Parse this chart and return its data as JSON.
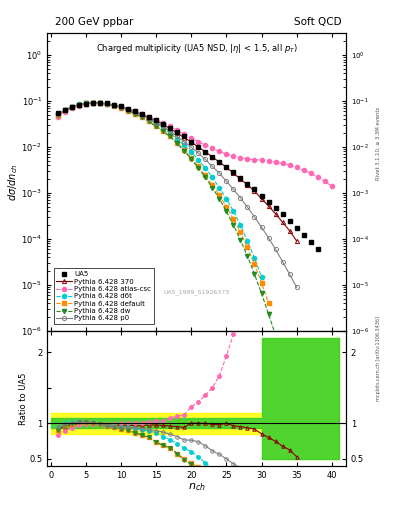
{
  "title_top": "200 GeV ppbar",
  "title_right": "Soft QCD",
  "plot_title": "Charged multiplicity (UA5 NSD, |\\u03b7| < 1.5, all p_T)",
  "ylabel_main": "d\\u03c3/dn_ch",
  "ylabel_ratio": "Ratio to UA5",
  "xlabel": "n_ch",
  "watermark": "UA5_1989_S1926373",
  "ua5_x": [
    1,
    2,
    3,
    4,
    5,
    6,
    7,
    8,
    9,
    10,
    11,
    12,
    13,
    14,
    15,
    16,
    17,
    18,
    19,
    20,
    21,
    22,
    23,
    24,
    25,
    26,
    27,
    28,
    29,
    30,
    31,
    32,
    33,
    34,
    35,
    36,
    37,
    38
  ],
  "ua5_y": [
    0.055,
    0.065,
    0.075,
    0.082,
    0.088,
    0.091,
    0.091,
    0.089,
    0.084,
    0.077,
    0.069,
    0.061,
    0.053,
    0.045,
    0.038,
    0.032,
    0.026,
    0.021,
    0.017,
    0.013,
    0.01,
    0.0079,
    0.0062,
    0.0048,
    0.0036,
    0.0028,
    0.0021,
    0.0016,
    0.0012,
    0.00088,
    0.00065,
    0.00047,
    0.00034,
    0.00024,
    0.00017,
    0.00012,
    8.5e-05,
    6e-05
  ],
  "py370_x": [
    1,
    2,
    3,
    4,
    5,
    6,
    7,
    8,
    9,
    10,
    11,
    12,
    13,
    14,
    15,
    16,
    17,
    18,
    19,
    20,
    21,
    22,
    23,
    24,
    25,
    26,
    27,
    28,
    29,
    30,
    31,
    32,
    33,
    34,
    35
  ],
  "py370_y": [
    0.05,
    0.062,
    0.073,
    0.082,
    0.088,
    0.091,
    0.09,
    0.087,
    0.082,
    0.075,
    0.067,
    0.059,
    0.051,
    0.044,
    0.037,
    0.031,
    0.025,
    0.02,
    0.016,
    0.013,
    0.01,
    0.0079,
    0.0061,
    0.0047,
    0.0036,
    0.0027,
    0.002,
    0.0015,
    0.0011,
    0.00075,
    0.00052,
    0.00035,
    0.00023,
    0.00015,
    9e-05
  ],
  "pyatlas_x": [
    1,
    2,
    3,
    4,
    5,
    6,
    7,
    8,
    9,
    10,
    11,
    12,
    13,
    14,
    15,
    16,
    17,
    18,
    19,
    20,
    21,
    22,
    23,
    24,
    25,
    26,
    27,
    28,
    29,
    30,
    31,
    32,
    33,
    34,
    35,
    36,
    37,
    38,
    39,
    40
  ],
  "pyatlas_y": [
    0.046,
    0.058,
    0.07,
    0.08,
    0.087,
    0.09,
    0.09,
    0.088,
    0.083,
    0.077,
    0.069,
    0.061,
    0.053,
    0.046,
    0.039,
    0.033,
    0.028,
    0.023,
    0.019,
    0.016,
    0.013,
    0.011,
    0.0093,
    0.008,
    0.007,
    0.0063,
    0.0058,
    0.0055,
    0.0053,
    0.0052,
    0.005,
    0.0047,
    0.0044,
    0.004,
    0.0036,
    0.0031,
    0.0027,
    0.0022,
    0.0018,
    0.0014
  ],
  "pyd6t_x": [
    1,
    2,
    3,
    4,
    5,
    6,
    7,
    8,
    9,
    10,
    11,
    12,
    13,
    14,
    15,
    16,
    17,
    18,
    19,
    20,
    21,
    22,
    23,
    24,
    25,
    26,
    27,
    28,
    29,
    30
  ],
  "pyd6t_y": [
    0.052,
    0.065,
    0.076,
    0.085,
    0.09,
    0.092,
    0.091,
    0.087,
    0.081,
    0.073,
    0.065,
    0.056,
    0.048,
    0.04,
    0.033,
    0.026,
    0.02,
    0.015,
    0.011,
    0.0078,
    0.0053,
    0.0035,
    0.0022,
    0.0013,
    0.00075,
    0.0004,
    0.0002,
    9e-05,
    3.8e-05,
    1.5e-05
  ],
  "pydefault_x": [
    1,
    2,
    3,
    4,
    5,
    6,
    7,
    8,
    9,
    10,
    11,
    12,
    13,
    14,
    15,
    16,
    17,
    18,
    19,
    20,
    21,
    22,
    23,
    24,
    25,
    26,
    27,
    28,
    29,
    30,
    31
  ],
  "pydefault_y": [
    0.05,
    0.063,
    0.074,
    0.083,
    0.089,
    0.091,
    0.09,
    0.086,
    0.079,
    0.071,
    0.062,
    0.053,
    0.044,
    0.036,
    0.028,
    0.022,
    0.017,
    0.012,
    0.0085,
    0.0058,
    0.0038,
    0.0024,
    0.0015,
    0.0009,
    0.0005,
    0.00027,
    0.00014,
    6.5e-05,
    2.8e-05,
    1.1e-05,
    4e-06
  ],
  "pydw_x": [
    1,
    2,
    3,
    4,
    5,
    6,
    7,
    8,
    9,
    10,
    11,
    12,
    13,
    14,
    15,
    16,
    17,
    18,
    19,
    20,
    21,
    22,
    23,
    24,
    25,
    26,
    27,
    28,
    29,
    30,
    31,
    32
  ],
  "pydw_y": [
    0.05,
    0.063,
    0.074,
    0.083,
    0.089,
    0.091,
    0.09,
    0.086,
    0.079,
    0.071,
    0.062,
    0.053,
    0.044,
    0.036,
    0.028,
    0.022,
    0.017,
    0.012,
    0.0082,
    0.0055,
    0.0035,
    0.0022,
    0.0013,
    0.00075,
    0.0004,
    0.0002,
    9.5e-05,
    4.2e-05,
    1.7e-05,
    6.5e-06,
    2.3e-06,
    8e-07
  ],
  "pyp0_x": [
    1,
    2,
    3,
    4,
    5,
    6,
    7,
    8,
    9,
    10,
    11,
    12,
    13,
    14,
    15,
    16,
    17,
    18,
    19,
    20,
    21,
    22,
    23,
    24,
    25,
    26,
    27,
    28,
    29,
    30,
    31,
    32,
    33,
    34,
    35
  ],
  "pyp0_y": [
    0.052,
    0.064,
    0.075,
    0.083,
    0.089,
    0.091,
    0.09,
    0.086,
    0.08,
    0.073,
    0.065,
    0.057,
    0.049,
    0.041,
    0.034,
    0.028,
    0.022,
    0.017,
    0.013,
    0.0099,
    0.0074,
    0.0054,
    0.0038,
    0.0027,
    0.0018,
    0.0012,
    0.00078,
    0.00049,
    0.0003,
    0.00018,
    0.000105,
    5.9e-05,
    3.2e-05,
    1.7e-05,
    8.8e-06
  ],
  "colors": {
    "ua5": "#000000",
    "py370": "#8b0000",
    "pyatlas": "#ff69b4",
    "pyd6t": "#00ced1",
    "pydefault": "#ff8c00",
    "pydw": "#228b22",
    "pyp0": "#808080"
  },
  "band_x": [
    0,
    1,
    2,
    3,
    4,
    5,
    6,
    7,
    8,
    9,
    10,
    11,
    12,
    13,
    14,
    15,
    16,
    17,
    18,
    19,
    20,
    21,
    22,
    23,
    24,
    25,
    26,
    27,
    28,
    29,
    30,
    31,
    32,
    33,
    34,
    35,
    36,
    37,
    38,
    39,
    40,
    41
  ],
  "band_yellow_lo": [
    0.85,
    0.85,
    0.85,
    0.85,
    0.85,
    0.85,
    0.85,
    0.85,
    0.85,
    0.85,
    0.85,
    0.85,
    0.85,
    0.85,
    0.85,
    0.85,
    0.85,
    0.85,
    0.85,
    0.85,
    0.85,
    0.85,
    0.85,
    0.85,
    0.85,
    0.85,
    0.85,
    0.85,
    0.85,
    0.85,
    0.5,
    0.5,
    0.5,
    0.5,
    0.5,
    0.5,
    0.5,
    0.5,
    0.5,
    0.5,
    0.5,
    0.5
  ],
  "band_yellow_hi": [
    1.15,
    1.15,
    1.15,
    1.15,
    1.15,
    1.15,
    1.15,
    1.15,
    1.15,
    1.15,
    1.15,
    1.15,
    1.15,
    1.15,
    1.15,
    1.15,
    1.15,
    1.15,
    1.15,
    1.15,
    1.15,
    1.15,
    1.15,
    1.15,
    1.15,
    1.15,
    1.15,
    1.15,
    1.15,
    1.15,
    2.2,
    2.2,
    2.2,
    2.2,
    2.2,
    2.2,
    2.2,
    2.2,
    2.2,
    2.2,
    2.2,
    2.2
  ],
  "band_green_lo": [
    0.93,
    0.93,
    0.93,
    0.93,
    0.93,
    0.93,
    0.93,
    0.93,
    0.93,
    0.93,
    0.93,
    0.93,
    0.93,
    0.93,
    0.93,
    0.93,
    0.93,
    0.93,
    0.93,
    0.93,
    0.93,
    0.93,
    0.93,
    0.93,
    0.93,
    0.93,
    0.93,
    0.93,
    0.93,
    0.93,
    0.5,
    0.5,
    0.5,
    0.5,
    0.5,
    0.5,
    0.5,
    0.5,
    0.5,
    0.5,
    0.5,
    0.5
  ],
  "band_green_hi": [
    1.07,
    1.07,
    1.07,
    1.07,
    1.07,
    1.07,
    1.07,
    1.07,
    1.07,
    1.07,
    1.07,
    1.07,
    1.07,
    1.07,
    1.07,
    1.07,
    1.07,
    1.07,
    1.07,
    1.07,
    1.07,
    1.07,
    1.07,
    1.07,
    1.07,
    1.07,
    1.07,
    1.07,
    1.07,
    1.07,
    2.2,
    2.2,
    2.2,
    2.2,
    2.2,
    2.2,
    2.2,
    2.2,
    2.2,
    2.2,
    2.2,
    2.2
  ],
  "ylim_main": [
    1e-06,
    3.0
  ],
  "ylim_ratio": [
    0.4,
    2.3
  ],
  "xlim": [
    -0.5,
    42
  ]
}
